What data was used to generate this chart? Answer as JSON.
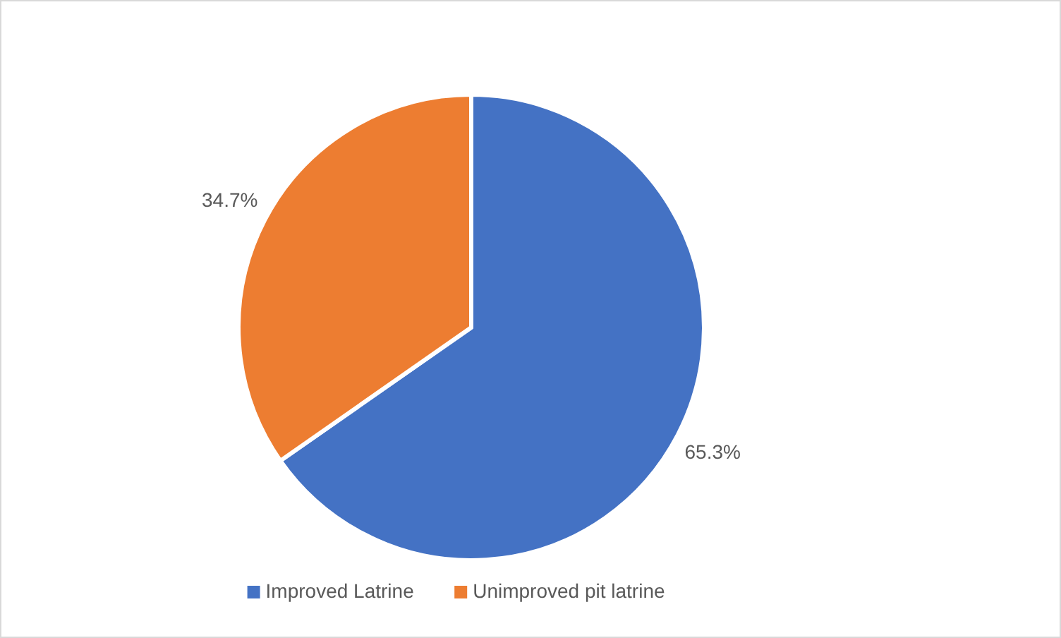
{
  "chart_data": {
    "type": "pie",
    "categories": [
      "Improved Latrine",
      "Unimproved pit latrine"
    ],
    "values": [
      65.3,
      34.7
    ],
    "colors": [
      "#4472c4",
      "#ed7d31"
    ],
    "value_labels": [
      "65.3%",
      "34.7%"
    ],
    "legend": "bottom"
  }
}
